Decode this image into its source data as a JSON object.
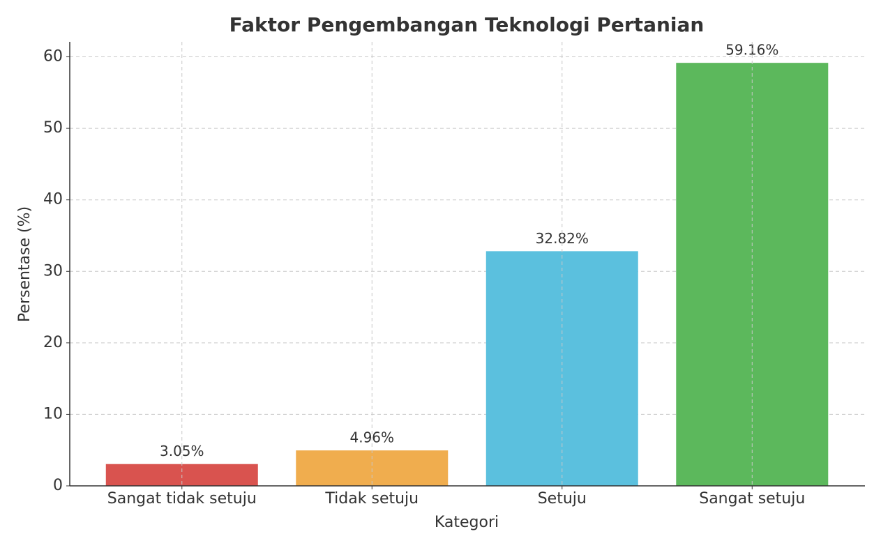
{
  "chart_data": {
    "type": "bar",
    "title": "Faktor Pengembangan Teknologi Pertanian",
    "x_label": "Kategori",
    "y_label": "Persentase (%)",
    "categories": [
      "Sangat tidak setuju",
      "Tidak setuju",
      "Setuju",
      "Sangat setuju"
    ],
    "values": [
      3.05,
      4.96,
      32.82,
      59.16
    ],
    "value_labels": [
      "3.05%",
      "4.96%",
      "32.82%",
      "59.16%"
    ],
    "colors": [
      "#d9534f",
      "#f0ad4e",
      "#5bc0de",
      "#5cb85c"
    ],
    "ylim": [
      0,
      62.1
    ],
    "yticks": [
      0,
      10,
      20,
      30,
      40,
      50,
      60
    ],
    "grid": true
  }
}
